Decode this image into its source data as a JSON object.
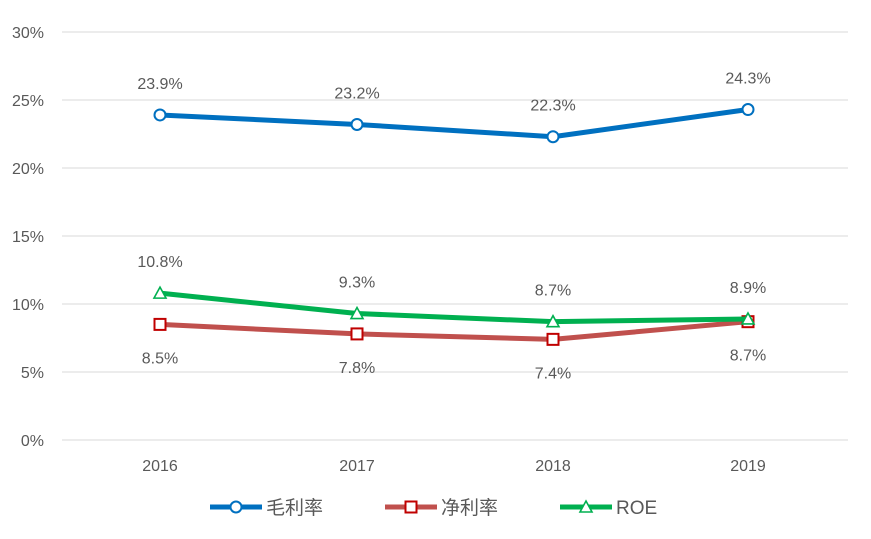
{
  "chart_data": {
    "type": "line",
    "categories": [
      "2016",
      "2017",
      "2018",
      "2019"
    ],
    "ylim": [
      0,
      30
    ],
    "yticks": [
      "0%",
      "5%",
      "10%",
      "15%",
      "20%",
      "25%",
      "30%"
    ],
    "ytick_values": [
      0,
      5,
      10,
      15,
      20,
      25,
      30
    ],
    "grid": true,
    "legend_position": "bottom",
    "series": [
      {
        "name": "毛利率",
        "values": [
          23.9,
          23.2,
          22.3,
          24.3
        ],
        "labels": [
          "23.9%",
          "23.2%",
          "22.3%",
          "24.3%"
        ],
        "color": "#0070C0",
        "marker": "circle",
        "label_position": "above"
      },
      {
        "name": "净利率",
        "values": [
          8.5,
          7.8,
          7.4,
          8.7
        ],
        "labels": [
          "8.5%",
          "7.8%",
          "7.4%",
          "8.7%"
        ],
        "color": "#C0504D",
        "marker_edge": "#C00000",
        "marker": "square",
        "label_position": "below"
      },
      {
        "name": "ROE",
        "values": [
          10.8,
          9.3,
          8.7,
          8.9
        ],
        "labels": [
          "10.8%",
          "9.3%",
          "8.7%",
          "8.9%"
        ],
        "color": "#00B050",
        "marker": "triangle",
        "label_position": "above"
      }
    ]
  }
}
